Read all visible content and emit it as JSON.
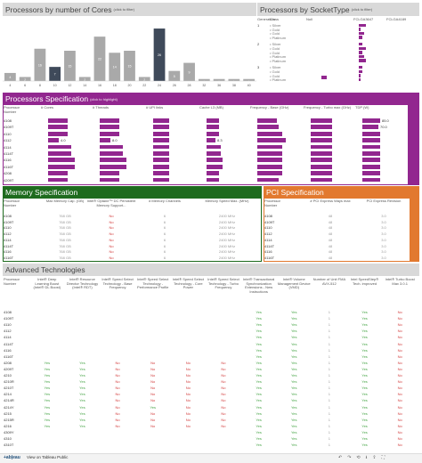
{
  "cores_panel": {
    "title": "Processors by number of Cores",
    "hint": "(click to filter)",
    "x_labels": [
      "4",
      "6",
      "8",
      "10",
      "12",
      "14",
      "16",
      "18",
      "20",
      "22",
      "24",
      "26",
      "28",
      "32",
      "36",
      "38",
      "40"
    ],
    "values": [
      4,
      2,
      16,
      7,
      15,
      2,
      22,
      14,
      15,
      2,
      26,
      5,
      9,
      1,
      1,
      1,
      1
    ],
    "ylim": [
      0,
      30
    ]
  },
  "socket_panel": {
    "title": "Processors by SocketType",
    "hint": "(click to filter)",
    "headers": [
      "Generation",
      "Class",
      "Null",
      "FCLGA3647",
      "FCLGA4189"
    ],
    "groups": [
      {
        "gen": "1",
        "rows": [
          "Silver",
          "Gold",
          "Gold",
          "Platinum"
        ],
        "v3647": [
          4,
          1,
          3,
          2
        ]
      },
      {
        "gen": "2",
        "rows": [
          "Silver",
          "Gold",
          "Gold",
          "Platinum",
          "Platinum"
        ],
        "v3647": [
          2,
          4,
          2,
          3,
          4
        ]
      },
      {
        "gen": "3",
        "rows": [
          "Silver",
          "Gold",
          "Gold",
          "Platinum"
        ],
        "v3647": [
          2,
          2,
          1,
          1
        ]
      }
    ]
  },
  "spec_panel": {
    "title": "Processors Specification",
    "hint": "(click to highlight)",
    "headers": [
      "Processor Number",
      "# Cores",
      "# Threads",
      "# UPI links",
      "Cache L3 (MB)",
      "Frequency - Base (GHz)",
      "Frequency - Turbo max (GHz)",
      "TDP (W)"
    ],
    "rows": [
      {
        "p": "4108",
        "c": 0.55,
        "t": 0.55,
        "u": 0.45,
        "l3": 0.35,
        "fb": 0.55,
        "ft": 0.6,
        "tdp": 0.5,
        "label": "",
        "tdpl": "85.0"
      },
      {
        "p": "4109T",
        "c": 0.55,
        "t": 0.55,
        "u": 0.45,
        "l3": 0.35,
        "fb": 0.6,
        "ft": 0.6,
        "tdp": 0.45,
        "label": "",
        "tdpl": "70.0"
      },
      {
        "p": "4110",
        "c": 0.55,
        "t": 0.55,
        "u": 0.45,
        "l3": 0.35,
        "fb": 0.7,
        "ft": 0.6,
        "tdp": 0.5,
        "label": "",
        "tdpl": ""
      },
      {
        "p": "4112",
        "c": 0.3,
        "t": 0.3,
        "u": 0.45,
        "l3": 0.25,
        "fb": 0.8,
        "ft": 0.6,
        "tdp": 0.5,
        "label": "4.0",
        "tdpl": ""
      },
      {
        "p": "4114",
        "c": 0.65,
        "t": 0.65,
        "u": 0.45,
        "l3": 0.4,
        "fb": 0.7,
        "ft": 0.6,
        "tdp": 0.5,
        "label": "",
        "tdpl": ""
      },
      {
        "p": "4114T",
        "c": 0.65,
        "t": 0.65,
        "u": 0.45,
        "l3": 0.4,
        "fb": 0.7,
        "ft": 0.6,
        "tdp": 0.5,
        "label": "",
        "tdpl": ""
      },
      {
        "p": "4116",
        "c": 0.75,
        "t": 0.75,
        "u": 0.45,
        "l3": 0.45,
        "fb": 0.7,
        "ft": 0.6,
        "tdp": 0.5,
        "label": "",
        "tdpl": ""
      },
      {
        "p": "4116T",
        "c": 0.75,
        "t": 0.75,
        "u": 0.45,
        "l3": 0.45,
        "fb": 0.7,
        "ft": 0.6,
        "tdp": 0.5,
        "label": "",
        "tdpl": ""
      },
      {
        "p": "4208",
        "c": 0.55,
        "t": 0.55,
        "u": 0.45,
        "l3": 0.35,
        "fb": 0.7,
        "ft": 0.6,
        "tdp": 0.5,
        "label": "",
        "tdpl": ""
      },
      {
        "p": "4209T",
        "c": 0.55,
        "t": 0.55,
        "u": 0.45,
        "l3": 0.35,
        "fb": 0.6,
        "ft": 0.6,
        "tdp": 0.5,
        "label": "",
        "tdpl": ""
      }
    ],
    "thread_label": "8.0",
    "cache_label": "8.3"
  },
  "mem_panel": {
    "title": "Memory Specification",
    "headers": [
      "Processor Number",
      "Max Memory Cap. (GB)",
      "Intel® Optane™ DC Persistent Memory Support...",
      "# Memory Channels",
      "Memory Speed Max. (MHz)"
    ],
    "rows": [
      [
        "4108",
        "768 GB",
        "No",
        "6",
        "2400 MHz"
      ],
      [
        "4109T",
        "768 GB",
        "No",
        "6",
        "2400 MHz"
      ],
      [
        "4110",
        "768 GB",
        "No",
        "6",
        "2400 MHz"
      ],
      [
        "4112",
        "768 GB",
        "No",
        "6",
        "2400 MHz"
      ],
      [
        "4114",
        "768 GB",
        "No",
        "6",
        "2400 MHz"
      ],
      [
        "4114T",
        "768 GB",
        "No",
        "6",
        "2400 MHz"
      ],
      [
        "4116",
        "768 GB",
        "No",
        "6",
        "2400 MHz"
      ],
      [
        "4116T",
        "768 GB",
        "No",
        "6",
        "2400 MHz"
      ]
    ]
  },
  "pci_panel": {
    "title": "PCI Specification",
    "headers": [
      "Processor Number",
      "# PCI Express Ways max",
      "PCI Express Revision"
    ],
    "rows": [
      [
        "4108",
        "48",
        "3.0"
      ],
      [
        "4109T",
        "48",
        "3.0"
      ],
      [
        "4110",
        "48",
        "3.0"
      ],
      [
        "4112",
        "48",
        "3.0"
      ],
      [
        "4114",
        "48",
        "3.0"
      ],
      [
        "4114T",
        "48",
        "3.0"
      ],
      [
        "4116",
        "48",
        "3.0"
      ],
      [
        "4116T",
        "48",
        "3.0"
      ]
    ]
  },
  "adv_panel": {
    "title": "Advanced Technologies",
    "headers": [
      "Processor Number",
      "Intel® Deep Learning Boost (Intel® DL Boost)",
      "Intel® Resource Director Technology (Intel® RDT)",
      "Intel® Speed Select Technology - Base Frequency",
      "Intel® Speed Select Technology - Performance Profile",
      "Intel® Speed Select Technology - Core Power",
      "Intel® Speed Select Technology - Turbo Frequency",
      "Intel® Transactional Synchronization Extensions - New Instructions",
      "Intel® Volume Management Device (VMD)",
      "Number of Unit FMA AVX-512",
      "Intel SpeedStep® Tech. improved",
      "Intel® Turbo Boost Max 3.0.1"
    ],
    "rows": [
      [
        "4108",
        "",
        "",
        "",
        "",
        "",
        "",
        "Yes",
        "Yes",
        "1",
        "Yes",
        "No"
      ],
      [
        "4109T",
        "",
        "",
        "",
        "",
        "",
        "",
        "Yes",
        "Yes",
        "1",
        "Yes",
        "No"
      ],
      [
        "4110",
        "",
        "",
        "",
        "",
        "",
        "",
        "Yes",
        "Yes",
        "1",
        "Yes",
        "No"
      ],
      [
        "4112",
        "",
        "",
        "",
        "",
        "",
        "",
        "Yes",
        "Yes",
        "1",
        "Yes",
        "No"
      ],
      [
        "4114",
        "",
        "",
        "",
        "",
        "",
        "",
        "Yes",
        "Yes",
        "1",
        "Yes",
        "No"
      ],
      [
        "4114T",
        "",
        "",
        "",
        "",
        "",
        "",
        "Yes",
        "Yes",
        "1",
        "Yes",
        "No"
      ],
      [
        "4116",
        "",
        "",
        "",
        "",
        "",
        "",
        "Yes",
        "Yes",
        "1",
        "Yes",
        "No"
      ],
      [
        "4116T",
        "",
        "",
        "",
        "",
        "",
        "",
        "Yes",
        "Yes",
        "1",
        "Yes",
        "No"
      ],
      [
        "4208",
        "Yes",
        "Yes",
        "No",
        "No",
        "No",
        "No",
        "Yes",
        "Yes",
        "1",
        "Yes",
        "No"
      ],
      [
        "4209T",
        "Yes",
        "Yes",
        "No",
        "No",
        "No",
        "No",
        "Yes",
        "Yes",
        "1",
        "Yes",
        "No"
      ],
      [
        "4210",
        "Yes",
        "Yes",
        "No",
        "No",
        "No",
        "No",
        "Yes",
        "Yes",
        "1",
        "Yes",
        "No"
      ],
      [
        "4210R",
        "Yes",
        "Yes",
        "No",
        "No",
        "No",
        "No",
        "Yes",
        "Yes",
        "1",
        "Yes",
        "No"
      ],
      [
        "4210T",
        "Yes",
        "Yes",
        "No",
        "No",
        "No",
        "No",
        "Yes",
        "Yes",
        "1",
        "Yes",
        "No"
      ],
      [
        "4214",
        "Yes",
        "Yes",
        "No",
        "No",
        "No",
        "No",
        "Yes",
        "Yes",
        "1",
        "Yes",
        "No"
      ],
      [
        "4214R",
        "Yes",
        "Yes",
        "No",
        "No",
        "No",
        "No",
        "Yes",
        "Yes",
        "1",
        "Yes",
        "No"
      ],
      [
        "4214Y",
        "Yes",
        "Yes",
        "No",
        "Yes",
        "No",
        "No",
        "Yes",
        "Yes",
        "1",
        "Yes",
        "No"
      ],
      [
        "4215",
        "Yes",
        "Yes",
        "No",
        "No",
        "No",
        "No",
        "Yes",
        "Yes",
        "1",
        "Yes",
        "No"
      ],
      [
        "4215R",
        "Yes",
        "Yes",
        "No",
        "No",
        "No",
        "No",
        "Yes",
        "Yes",
        "1",
        "Yes",
        "No"
      ],
      [
        "4216",
        "Yes",
        "Yes",
        "No",
        "No",
        "No",
        "No",
        "Yes",
        "Yes",
        "1",
        "Yes",
        "No"
      ],
      [
        "4309Y",
        "",
        "",
        "",
        "",
        "",
        "",
        "Yes",
        "Yes",
        "1",
        "Yes",
        "No"
      ],
      [
        "4310",
        "",
        "",
        "",
        "",
        "",
        "",
        "Yes",
        "Yes",
        "1",
        "Yes",
        "No"
      ],
      [
        "4310T",
        "",
        "",
        "",
        "",
        "",
        "",
        "Yes",
        "Yes",
        "1",
        "Yes",
        "No"
      ]
    ]
  },
  "footer": {
    "view_label": "View on Tableau Public",
    "tableau_logo": "+ab|eau"
  },
  "colors": {
    "purple": "#92278f",
    "green": "#1e6b1e",
    "orange": "#e2792f",
    "bar_gray": "#a9a9a9",
    "bar_dark": "#3f4a5a",
    "yes": "#4aa64a",
    "no": "#d23c3c"
  }
}
